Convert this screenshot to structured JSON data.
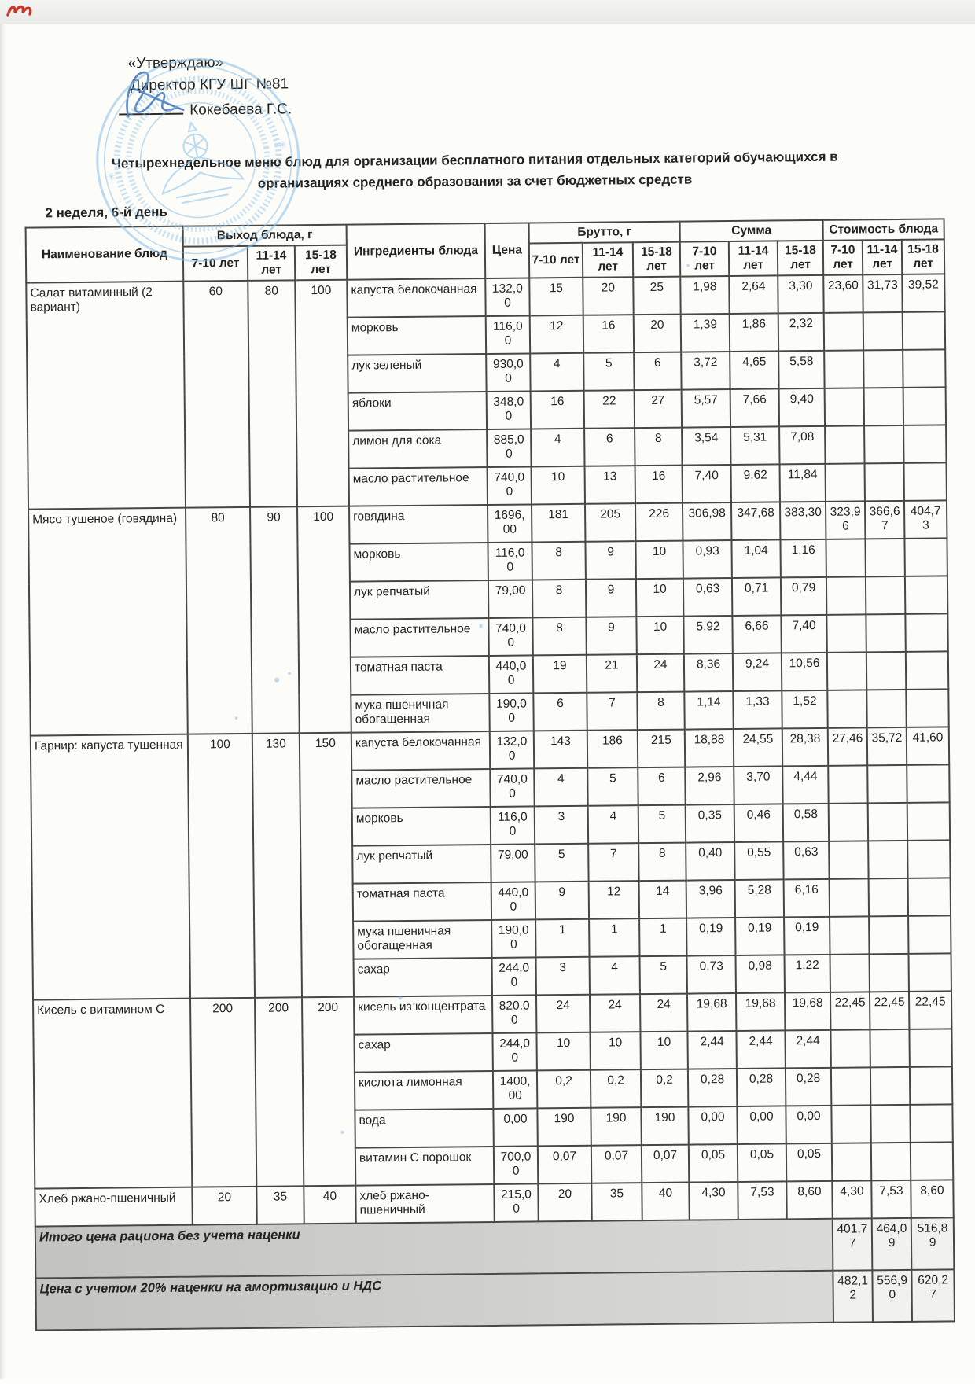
{
  "approval": {
    "approve": "«Утверждаю»",
    "role": "Директор КГУ ШГ №81",
    "signer": "Кокебаева Г.С."
  },
  "title": {
    "line1": "Четырехнедельное меню блюд для организации бесплатного питания отдельных категорий обучающихся в",
    "line2": "организациях среднего образования за счет бюджетных средств"
  },
  "week_label": "2 неделя, 6-й день",
  "menu_table": {
    "col_headers": {
      "dish": "Наименование блюд",
      "output": "Выход блюда, г",
      "ingredients": "Ингредиенты блюда",
      "price": "Цена",
      "brutto": "Брутто, г",
      "sum": "Сумма",
      "cost": "Стоимость блюда",
      "age_groups": [
        "7-10 лет",
        "11-14 лет",
        "15-18 лет"
      ]
    },
    "dishes": [
      {
        "name": "Салат витаминный (2 вариант)",
        "out": [
          "60",
          "80",
          "100"
        ],
        "cost": [
          "23,60",
          "31,73",
          "39,52"
        ],
        "rows": [
          {
            "ing": "капуста белокочанная",
            "price": "132,00",
            "brutto": [
              "15",
              "20",
              "25"
            ],
            "sum": [
              "1,98",
              "2,64",
              "3,30"
            ]
          },
          {
            "ing": "морковь",
            "price": "116,00",
            "brutto": [
              "12",
              "16",
              "20"
            ],
            "sum": [
              "1,39",
              "1,86",
              "2,32"
            ]
          },
          {
            "ing": "лук зеленый",
            "price": "930,00",
            "brutto": [
              "4",
              "5",
              "6"
            ],
            "sum": [
              "3,72",
              "4,65",
              "5,58"
            ]
          },
          {
            "ing": "яблоки",
            "price": "348,00",
            "brutto": [
              "16",
              "22",
              "27"
            ],
            "sum": [
              "5,57",
              "7,66",
              "9,40"
            ]
          },
          {
            "ing": "лимон для сока",
            "price": "885,00",
            "brutto": [
              "4",
              "6",
              "8"
            ],
            "sum": [
              "3,54",
              "5,31",
              "7,08"
            ]
          },
          {
            "ing": "масло растительное",
            "price": "740,00",
            "brutto": [
              "10",
              "13",
              "16"
            ],
            "sum": [
              "7,40",
              "9,62",
              "11,84"
            ]
          }
        ]
      },
      {
        "name": "Мясо тушеное (говядина)",
        "out": [
          "80",
          "90",
          "100"
        ],
        "cost": [
          "323,96",
          "366,67",
          "404,73"
        ],
        "rows": [
          {
            "ing": "говядина",
            "price": "1696,00",
            "brutto": [
              "181",
              "205",
              "226"
            ],
            "sum": [
              "306,98",
              "347,68",
              "383,30"
            ]
          },
          {
            "ing": "морковь",
            "price": "116,00",
            "brutto": [
              "8",
              "9",
              "10"
            ],
            "sum": [
              "0,93",
              "1,04",
              "1,16"
            ]
          },
          {
            "ing": "лук репчатый",
            "price": "79,00",
            "brutto": [
              "8",
              "9",
              "10"
            ],
            "sum": [
              "0,63",
              "0,71",
              "0,79"
            ]
          },
          {
            "ing": "масло растительное",
            "price": "740,00",
            "brutto": [
              "8",
              "9",
              "10"
            ],
            "sum": [
              "5,92",
              "6,66",
              "7,40"
            ]
          },
          {
            "ing": "томатная паста",
            "price": "440,00",
            "brutto": [
              "19",
              "21",
              "24"
            ],
            "sum": [
              "8,36",
              "9,24",
              "10,56"
            ]
          },
          {
            "ing": "мука пшеничная обогащенная",
            "price": "190,00",
            "brutto": [
              "6",
              "7",
              "8"
            ],
            "sum": [
              "1,14",
              "1,33",
              "1,52"
            ]
          }
        ]
      },
      {
        "name": "Гарнир: капуста тушенная",
        "out": [
          "100",
          "130",
          "150"
        ],
        "cost": [
          "27,46",
          "35,72",
          "41,60"
        ],
        "rows": [
          {
            "ing": "капуста белокочанная",
            "price": "132,00",
            "brutto": [
              "143",
              "186",
              "215"
            ],
            "sum": [
              "18,88",
              "24,55",
              "28,38"
            ]
          },
          {
            "ing": "масло растительное",
            "price": "740,00",
            "brutto": [
              "4",
              "5",
              "6"
            ],
            "sum": [
              "2,96",
              "3,70",
              "4,44"
            ]
          },
          {
            "ing": "морковь",
            "price": "116,00",
            "brutto": [
              "3",
              "4",
              "5"
            ],
            "sum": [
              "0,35",
              "0,46",
              "0,58"
            ]
          },
          {
            "ing": "лук репчатый",
            "price": "79,00",
            "brutto": [
              "5",
              "7",
              "8"
            ],
            "sum": [
              "0,40",
              "0,55",
              "0,63"
            ]
          },
          {
            "ing": "томатная паста",
            "price": "440,00",
            "brutto": [
              "9",
              "12",
              "14"
            ],
            "sum": [
              "3,96",
              "5,28",
              "6,16"
            ]
          },
          {
            "ing": "мука пшеничная обогащенная",
            "price": "190,00",
            "brutto": [
              "1",
              "1",
              "1"
            ],
            "sum": [
              "0,19",
              "0,19",
              "0,19"
            ]
          },
          {
            "ing": "сахар",
            "price": "244,00",
            "brutto": [
              "3",
              "4",
              "5"
            ],
            "sum": [
              "0,73",
              "0,98",
              "1,22"
            ]
          }
        ]
      },
      {
        "name": "Кисель с витамином С",
        "out": [
          "200",
          "200",
          "200"
        ],
        "cost": [
          "22,45",
          "22,45",
          "22,45"
        ],
        "rows": [
          {
            "ing": "кисель из концентрата",
            "price": "820,00",
            "brutto": [
              "24",
              "24",
              "24"
            ],
            "sum": [
              "19,68",
              "19,68",
              "19,68"
            ]
          },
          {
            "ing": "сахар",
            "price": "244,00",
            "brutto": [
              "10",
              "10",
              "10"
            ],
            "sum": [
              "2,44",
              "2,44",
              "2,44"
            ]
          },
          {
            "ing": "кислота лимонная",
            "price": "1400,00",
            "brutto": [
              "0,2",
              "0,2",
              "0,2"
            ],
            "sum": [
              "0,28",
              "0,28",
              "0,28"
            ]
          },
          {
            "ing": "вода",
            "price": "0,00",
            "brutto": [
              "190",
              "190",
              "190"
            ],
            "sum": [
              "0,00",
              "0,00",
              "0,00"
            ]
          },
          {
            "ing": "витамин С порошок",
            "price": "700,00",
            "brutto": [
              "0,07",
              "0,07",
              "0,07"
            ],
            "sum": [
              "0,05",
              "0,05",
              "0,05"
            ]
          }
        ]
      },
      {
        "name": "Хлеб ржано-пшеничный",
        "out": [
          "20",
          "35",
          "40"
        ],
        "cost": [
          "4,30",
          "7,53",
          "8,60"
        ],
        "rows": [
          {
            "ing": "хлеб ржано-пшеничный",
            "price": "215,00",
            "brutto": [
              "20",
              "35",
              "40"
            ],
            "sum": [
              "4,30",
              "7,53",
              "8,60"
            ]
          }
        ]
      }
    ],
    "totals": [
      {
        "label": "Итого цена рациона без учета наценки",
        "values": [
          "401,77",
          "464,09",
          "516,89"
        ]
      },
      {
        "label": "Цена с учетом 20% наценки на амортизацию и НДС",
        "values": [
          "482,12",
          "556,90",
          "620,27"
        ]
      }
    ]
  },
  "colors": {
    "stamp_blue": "#8fc2e8",
    "ink_blue": "#4a7fc0",
    "mark_red": "#cd3626",
    "table_border": "#474745",
    "band_gray": "#c9c9c6"
  }
}
